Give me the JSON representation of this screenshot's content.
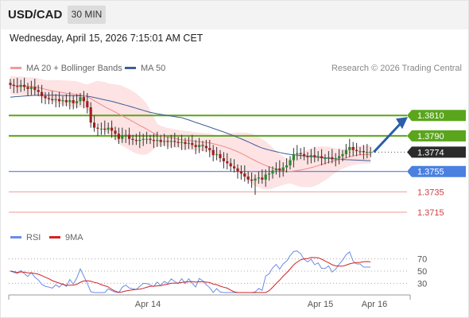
{
  "header": {
    "symbol": "USD/CAD",
    "timeframe": "30 MIN",
    "datetime": "Wednesday, April 15, 2026 7:15:01 AM CET"
  },
  "legend": {
    "bollinger": "MA 20 + Bollinger Bands",
    "ma50": "MA 50",
    "rsi": "RSI",
    "rsi_ma": "9MA"
  },
  "credit": "Research © 2026 Trading Central",
  "colors": {
    "resistance": "#5aa51c",
    "support": "#f3a2a2",
    "pivot": "#4a80e0",
    "current": "#2b2b2b",
    "bollinger_fill": "#fde3e3",
    "ma20": "#ef8a8a",
    "ma50": "#3f5e98",
    "rsi": "#6b8de6",
    "rsi_ma": "#d22222",
    "arrow": "#2c5ea8"
  },
  "chart_data": [
    {
      "type": "candlestick",
      "title": "USD/CAD",
      "timeframe": "30 MIN",
      "ylim": [
        1.3697,
        1.3857
      ],
      "xlabels": [
        "Apr 14",
        "Apr 15",
        "Apr 16"
      ],
      "levels": [
        {
          "value": 1.381,
          "label": "1.3810",
          "kind": "resistance"
        },
        {
          "value": 1.379,
          "label": "1.3790",
          "kind": "resistance"
        },
        {
          "value": 1.3774,
          "label": "1.3774",
          "kind": "current"
        },
        {
          "value": 1.3755,
          "label": "1.3755",
          "kind": "pivot"
        },
        {
          "value": 1.3735,
          "label": "1.3735",
          "kind": "support"
        },
        {
          "value": 1.3715,
          "label": "1.3715",
          "kind": "support"
        }
      ],
      "close": [
        1.384,
        1.3839,
        1.3838,
        1.384,
        1.3838,
        1.3836,
        1.3838,
        1.3835,
        1.3833,
        1.3829,
        1.3827,
        1.3826,
        1.3825,
        1.3826,
        1.3824,
        1.3825,
        1.3823,
        1.3825,
        1.3822,
        1.3824,
        1.3828,
        1.3824,
        1.3818,
        1.3803,
        1.3798,
        1.3797,
        1.3797,
        1.3796,
        1.3798,
        1.3795,
        1.3792,
        1.3787,
        1.379,
        1.3791,
        1.3787,
        1.3786,
        1.3785,
        1.3786,
        1.3787,
        1.3787,
        1.3786,
        1.3785,
        1.3786,
        1.3784,
        1.3785,
        1.3784,
        1.3785,
        1.3784,
        1.3783,
        1.3784,
        1.3782,
        1.3783,
        1.3781,
        1.3779,
        1.3781,
        1.378,
        1.3778,
        1.3776,
        1.3771,
        1.3772,
        1.3768,
        1.3765,
        1.3763,
        1.376,
        1.3758,
        1.3755,
        1.3753,
        1.375,
        1.3747,
        1.3746,
        1.3748,
        1.3749,
        1.3747,
        1.3752,
        1.3753,
        1.3756,
        1.3758,
        1.3756,
        1.3759,
        1.3761,
        1.3766,
        1.3772,
        1.3773,
        1.3772,
        1.377,
        1.3769,
        1.3771,
        1.3769,
        1.377,
        1.3768,
        1.3768,
        1.3769,
        1.3767,
        1.3768,
        1.377,
        1.3772,
        1.3776,
        1.3779,
        1.3776,
        1.3775,
        1.3775,
        1.3774,
        1.3774,
        1.3774
      ],
      "ma50_last": 1.3766,
      "bollinger_last": {
        "upper": 1.3781,
        "middle": 1.3771,
        "lower": 1.3761
      },
      "projection": {
        "from": 1.3774,
        "to": 1.381
      }
    },
    {
      "type": "line",
      "title": "RSI",
      "ylim": [
        15,
        85
      ],
      "yticks": [
        70,
        50,
        30
      ],
      "series": [
        {
          "name": "RSI",
          "last": 59
        },
        {
          "name": "9MA",
          "last": 59
        }
      ]
    }
  ]
}
